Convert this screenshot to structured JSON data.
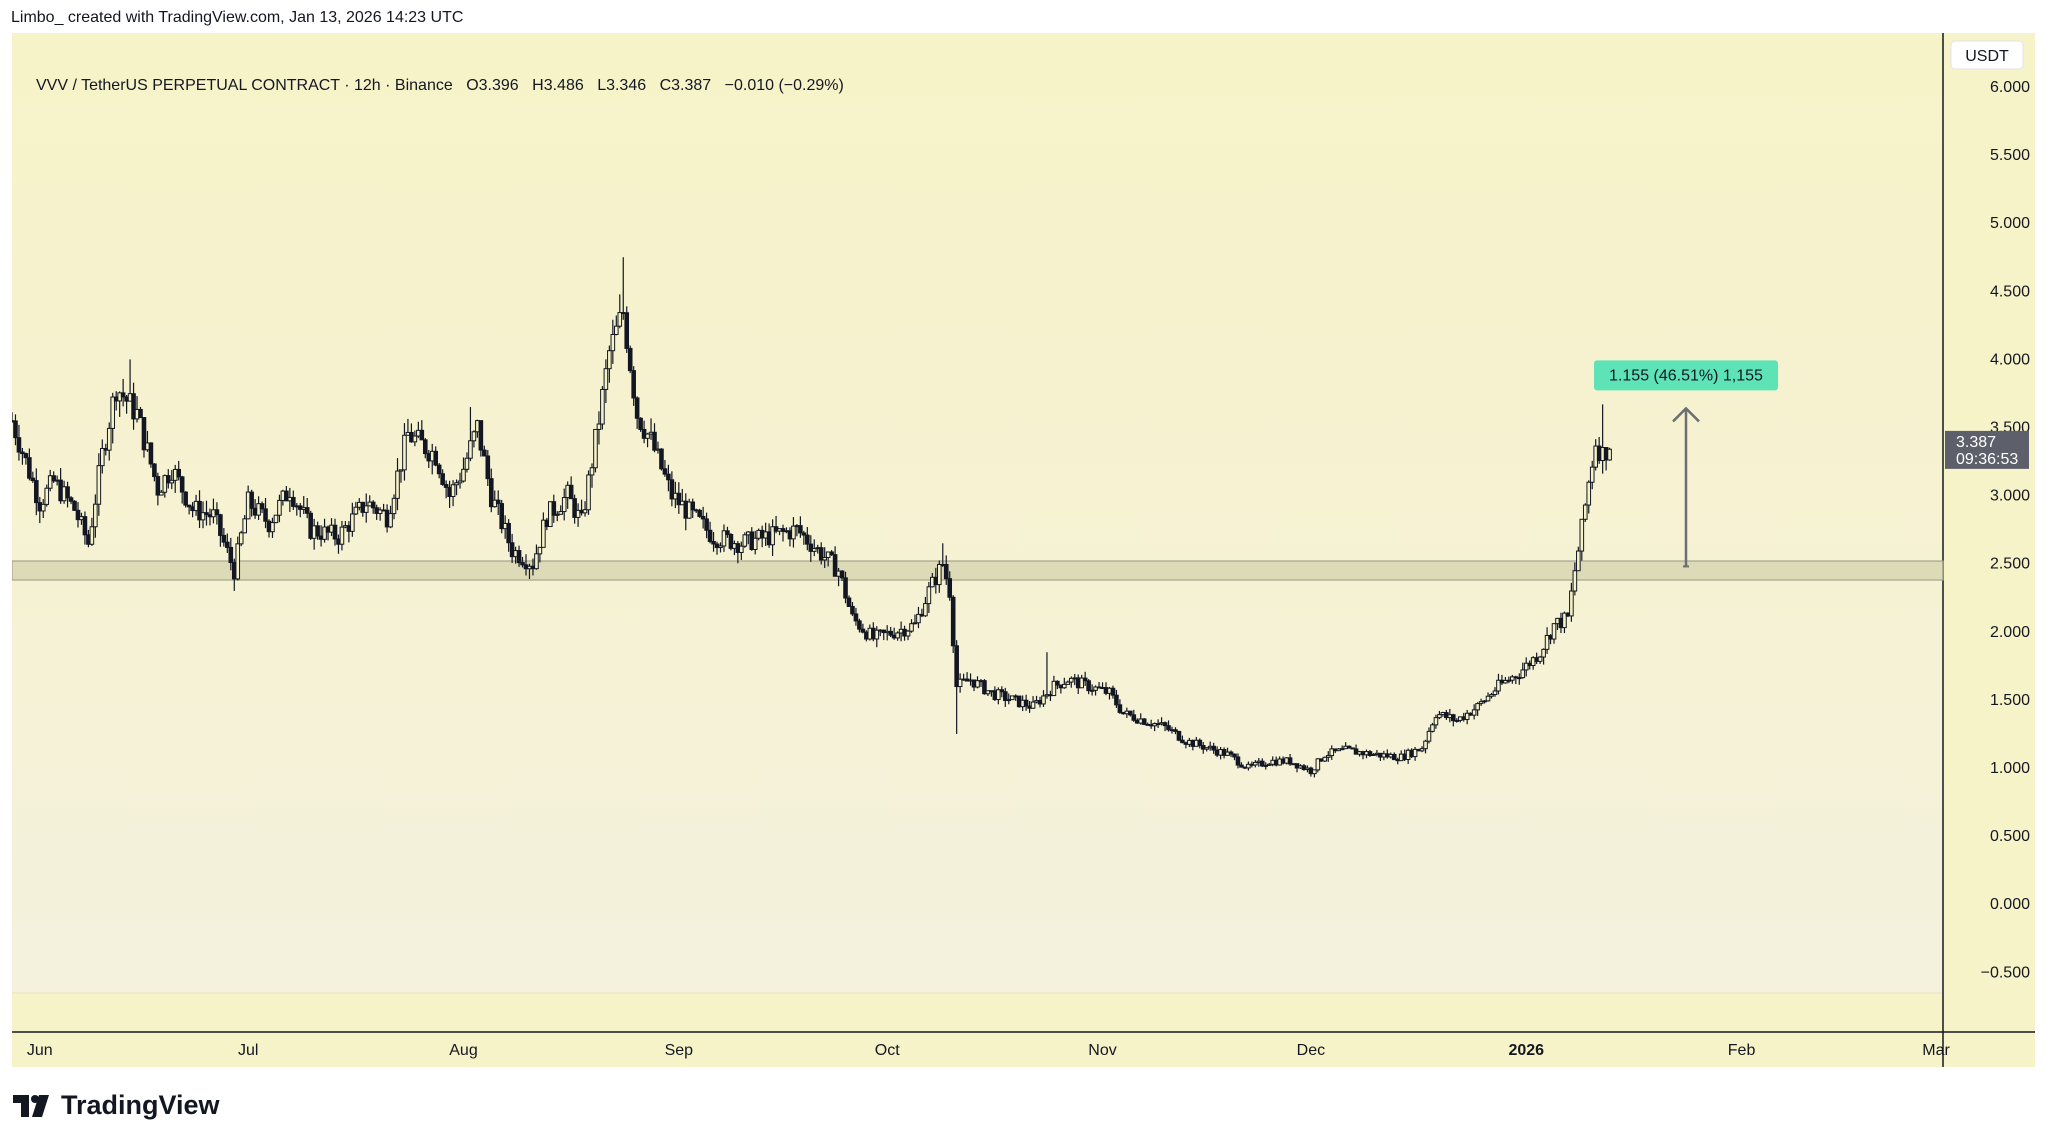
{
  "header": {
    "attribution": "Limbo_ created with TradingView.com, Jan 13, 2026 14:23 UTC"
  },
  "legend": {
    "symbol": "VVV / TetherUS PERPETUAL CONTRACT · 12h · Binance",
    "open": "O3.396",
    "high": "H3.486",
    "low": "L3.346",
    "close": "C3.387",
    "change": "−0.010 (−0.29%)"
  },
  "price_axis": {
    "currency": "USDT",
    "last_price": "3.387",
    "countdown": "09:36:53"
  },
  "measure_label": "1.155 (46.51%) 1,155",
  "footer": {
    "brand": "TradingView"
  },
  "colors": {
    "background_top": "#f7f3c8",
    "background_bottom": "#f4f1dd",
    "candle": "#131722",
    "zone_fill": "#d3d1ad",
    "measure_label_bg": "#5ee3b7",
    "last_price_bg": "#5d606b"
  },
  "chart_data": {
    "type": "candlestick",
    "title": "VVV / TetherUS PERPETUAL CONTRACT · 12h · Binance",
    "xlabel": "",
    "ylabel": "",
    "ylim": [
      -0.7,
      6.3
    ],
    "y_ticks": [
      "6.000",
      "5.500",
      "5.000",
      "4.500",
      "4.000",
      "3.500",
      "3.000",
      "2.500",
      "2.000",
      "1.500",
      "1.000",
      "0.500",
      "0.000",
      "−0.500"
    ],
    "y_tick_values": [
      6.0,
      5.5,
      5.0,
      4.5,
      4.0,
      3.5,
      3.0,
      2.5,
      2.0,
      1.5,
      1.0,
      0.5,
      0.0,
      -0.5
    ],
    "x_ticks": [
      {
        "label": "Jun",
        "date": "2025-06-01"
      },
      {
        "label": "Jul",
        "date": "2025-07-01"
      },
      {
        "label": "Aug",
        "date": "2025-08-01"
      },
      {
        "label": "Sep",
        "date": "2025-09-01"
      },
      {
        "label": "Oct",
        "date": "2025-10-01"
      },
      {
        "label": "Nov",
        "date": "2025-11-01"
      },
      {
        "label": "Dec",
        "date": "2025-12-01"
      },
      {
        "label": "2026",
        "date": "2026-01-01",
        "bold": true
      },
      {
        "label": "Feb",
        "date": "2026-02-01"
      },
      {
        "label": "Mar",
        "date": "2026-03-01"
      }
    ],
    "x_range": [
      "2025-05-28",
      "2026-03-02"
    ],
    "price_path": [
      [
        "2025-05-28",
        3.55
      ],
      [
        "2025-06-01",
        2.95
      ],
      [
        "2025-06-03",
        3.1
      ],
      [
        "2025-06-06",
        2.9
      ],
      [
        "2025-06-08",
        2.65
      ],
      [
        "2025-06-10",
        3.3
      ],
      [
        "2025-06-12",
        3.8
      ],
      [
        "2025-06-15",
        3.6
      ],
      [
        "2025-06-18",
        3.05
      ],
      [
        "2025-06-20",
        3.2
      ],
      [
        "2025-06-23",
        2.9
      ],
      [
        "2025-06-26",
        2.85
      ],
      [
        "2025-06-29",
        2.45
      ],
      [
        "2025-07-01",
        2.95
      ],
      [
        "2025-07-04",
        2.8
      ],
      [
        "2025-07-07",
        3.05
      ],
      [
        "2025-07-10",
        2.75
      ],
      [
        "2025-07-14",
        2.7
      ],
      [
        "2025-07-18",
        2.95
      ],
      [
        "2025-07-21",
        2.85
      ],
      [
        "2025-07-24",
        3.45
      ],
      [
        "2025-07-28",
        3.3
      ],
      [
        "2025-07-30",
        3.0
      ],
      [
        "2025-08-01",
        3.2
      ],
      [
        "2025-08-03",
        3.5
      ],
      [
        "2025-08-05",
        3.0
      ],
      [
        "2025-08-08",
        2.6
      ],
      [
        "2025-08-11",
        2.5
      ],
      [
        "2025-08-13",
        2.85
      ],
      [
        "2025-08-16",
        3.0
      ],
      [
        "2025-08-18",
        2.8
      ],
      [
        "2025-08-20",
        3.4
      ],
      [
        "2025-08-22",
        4.05
      ],
      [
        "2025-08-24",
        4.35
      ],
      [
        "2025-08-26",
        3.6
      ],
      [
        "2025-08-28",
        3.4
      ],
      [
        "2025-08-31",
        3.0
      ],
      [
        "2025-09-03",
        2.85
      ],
      [
        "2025-09-06",
        2.7
      ],
      [
        "2025-09-10",
        2.65
      ],
      [
        "2025-09-14",
        2.7
      ],
      [
        "2025-09-18",
        2.75
      ],
      [
        "2025-09-21",
        2.6
      ],
      [
        "2025-09-24",
        2.45
      ],
      [
        "2025-09-26",
        2.1
      ],
      [
        "2025-09-29",
        1.95
      ],
      [
        "2025-10-02",
        2.0
      ],
      [
        "2025-10-05",
        2.05
      ],
      [
        "2025-10-07",
        2.3
      ],
      [
        "2025-10-09",
        2.5
      ],
      [
        "2025-10-10",
        2.3
      ],
      [
        "2025-10-11",
        1.6
      ],
      [
        "2025-10-13",
        1.65
      ],
      [
        "2025-10-16",
        1.55
      ],
      [
        "2025-10-19",
        1.5
      ],
      [
        "2025-10-22",
        1.45
      ],
      [
        "2025-10-25",
        1.6
      ],
      [
        "2025-10-27",
        1.65
      ],
      [
        "2025-10-30",
        1.6
      ],
      [
        "2025-11-02",
        1.55
      ],
      [
        "2025-11-04",
        1.4
      ],
      [
        "2025-11-07",
        1.35
      ],
      [
        "2025-11-10",
        1.3
      ],
      [
        "2025-11-13",
        1.2
      ],
      [
        "2025-11-16",
        1.15
      ],
      [
        "2025-11-19",
        1.1
      ],
      [
        "2025-11-22",
        1.0
      ],
      [
        "2025-11-25",
        1.05
      ],
      [
        "2025-11-28",
        1.05
      ],
      [
        "2025-12-01",
        0.98
      ],
      [
        "2025-12-03",
        1.1
      ],
      [
        "2025-12-06",
        1.13
      ],
      [
        "2025-12-10",
        1.1
      ],
      [
        "2025-12-14",
        1.08
      ],
      [
        "2025-12-17",
        1.15
      ],
      [
        "2025-12-19",
        1.4
      ],
      [
        "2025-12-22",
        1.35
      ],
      [
        "2025-12-25",
        1.45
      ],
      [
        "2025-12-28",
        1.6
      ],
      [
        "2025-12-31",
        1.7
      ],
      [
        "2026-01-03",
        1.85
      ],
      [
        "2026-01-05",
        2.05
      ],
      [
        "2026-01-07",
        2.1
      ],
      [
        "2026-01-08",
        2.45
      ],
      [
        "2026-01-09",
        2.75
      ],
      [
        "2026-01-10",
        3.1
      ],
      [
        "2026-01-11",
        3.4
      ],
      [
        "2026-01-12",
        3.3
      ],
      [
        "2026-01-13",
        3.387
      ]
    ],
    "wicks": [
      {
        "date": "2025-06-14",
        "high": 4.0
      },
      {
        "date": "2025-06-29",
        "low": 2.3
      },
      {
        "date": "2025-08-02",
        "high": 3.65
      },
      {
        "date": "2025-08-24",
        "high": 4.75
      },
      {
        "date": "2025-10-09",
        "high": 2.65
      },
      {
        "date": "2025-10-11",
        "low": 1.25
      },
      {
        "date": "2025-10-24",
        "high": 1.85
      },
      {
        "date": "2026-01-12",
        "high": 3.67
      }
    ],
    "last_close": 3.387,
    "support_zone": {
      "from": 2.38,
      "to": 2.52
    },
    "measurement": {
      "date": "2026-01-24",
      "from": 2.48,
      "to": 3.64,
      "label": "1.155 (46.51%) 1,155"
    }
  }
}
